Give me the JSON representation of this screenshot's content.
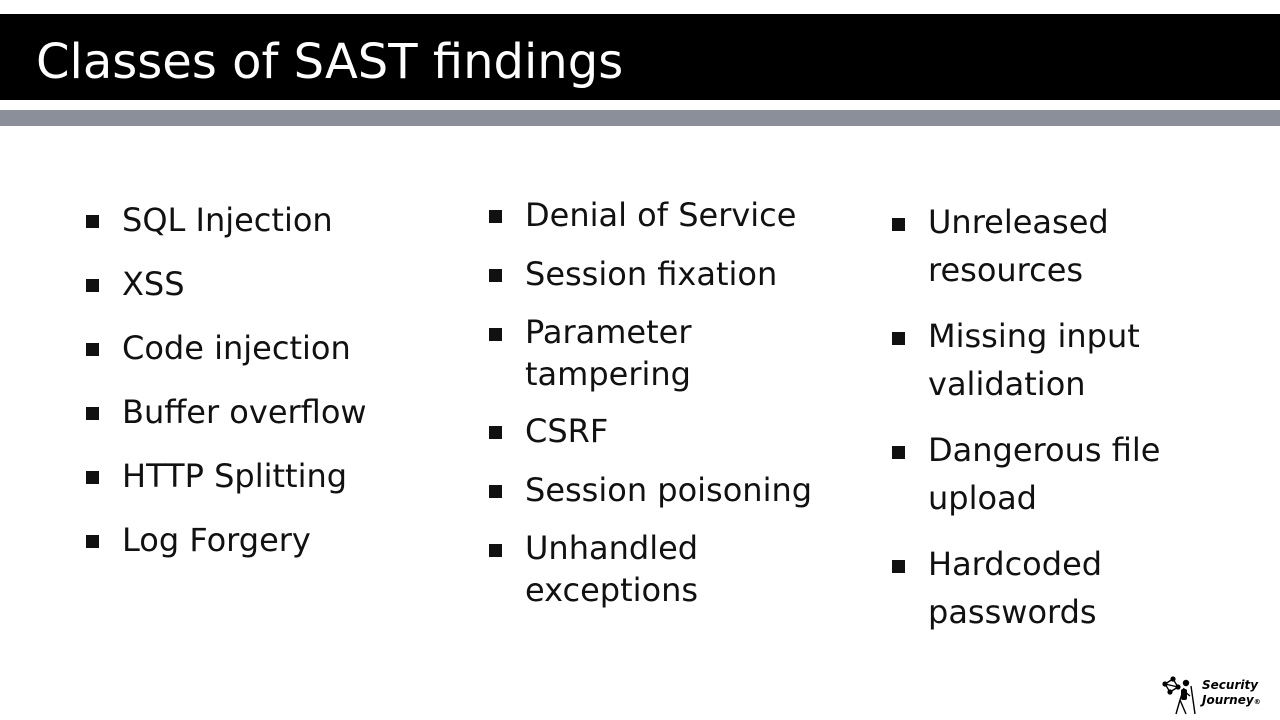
{
  "slide": {
    "title": "Classes of SAST findings",
    "columns": [
      {
        "items": [
          "SQL Injection",
          "XSS",
          "Code injection",
          "Buffer overflow",
          "HTTP Splitting",
          "Log Forgery"
        ]
      },
      {
        "items": [
          "Denial of Service",
          "Session fixation",
          "Parameter\ntampering",
          "CSRF",
          "Session poisoning",
          "Unhandled\nexceptions"
        ]
      },
      {
        "items": [
          "Unreleased\nresources",
          "Missing input\nvalidation",
          "Dangerous file\nupload",
          "Hardcoded\npasswords"
        ]
      }
    ]
  },
  "logo": {
    "line1": "Security",
    "line2": "Journey",
    "registered": "®",
    "icon": "hiker-network-icon"
  },
  "colors": {
    "title_bar": "#000000",
    "title_text": "#ffffff",
    "rule": "#8b8f99",
    "body_text": "#111111"
  }
}
